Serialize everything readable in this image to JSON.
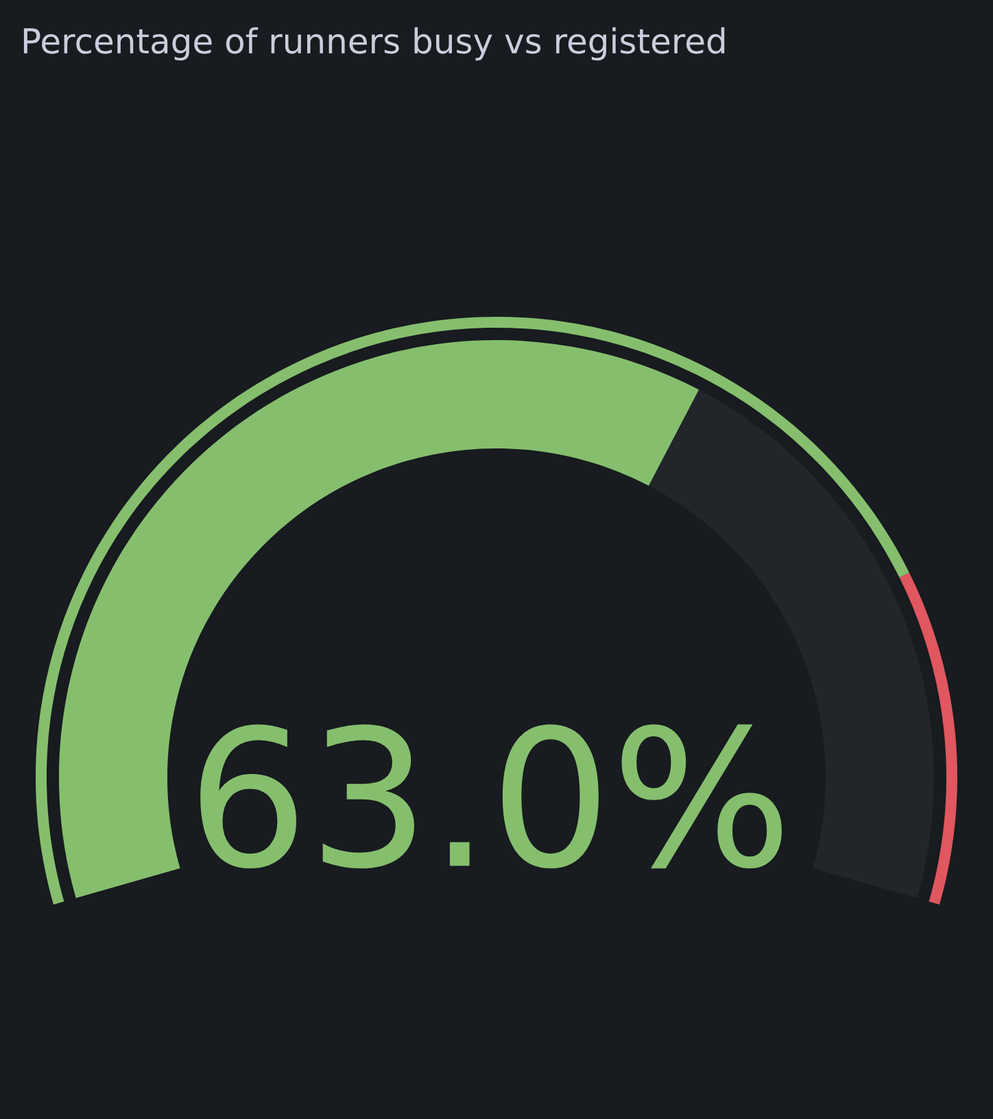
{
  "chart_data": {
    "type": "donut",
    "title": "Percentage of runners busy vs registered",
    "categories": [
      null,
      null
    ],
    "series": [
      {
        "values": [
          63.0,
          37.0
        ],
        "colors": [
          "#85bf6e",
          "#22252a"
        ]
      },
      {
        "values": [
          80,
          20
        ],
        "colors": [
          "#85bf6e",
          "#e0575f"
        ]
      }
    ],
    "annotations": [
      "63.0%"
    ]
  }
}
